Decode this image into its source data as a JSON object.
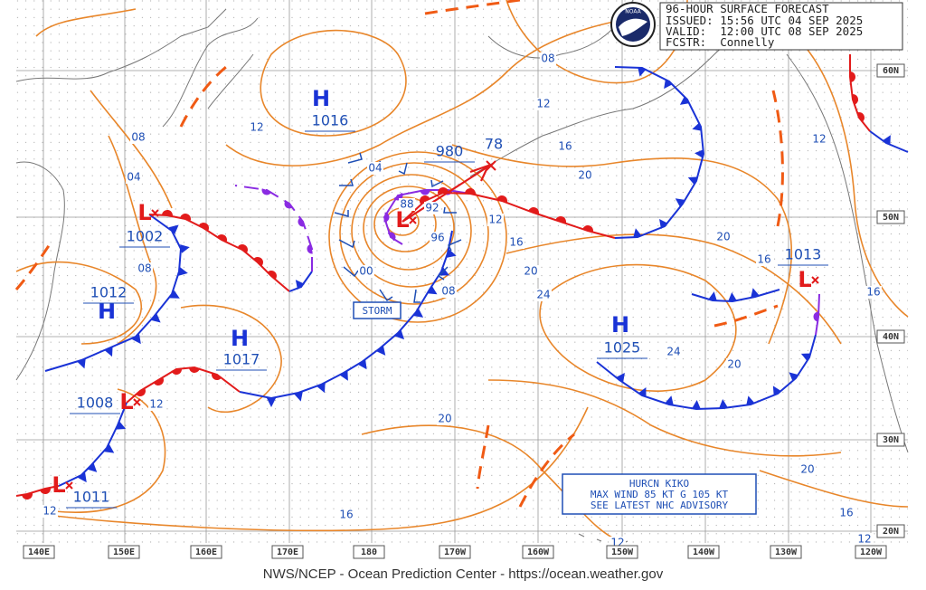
{
  "header": {
    "lines": [
      "96-HOUR SURFACE FORECAST",
      "ISSUED: 15:56 UTC 04 SEP 2025",
      "VALID:  12:00 UTC 08 SEP 2025",
      "FCSTR:  Connelly"
    ]
  },
  "logo": "NOAA",
  "centers": [
    {
      "symbol": "H",
      "pressure": "1016"
    },
    {
      "symbol": "L",
      "pressure": "980"
    },
    {
      "symbol": "L",
      "pressure": "1002"
    },
    {
      "symbol": "H",
      "pressure": "1012"
    },
    {
      "symbol": "H",
      "pressure": "1017"
    },
    {
      "symbol": "L",
      "pressure": "1008"
    },
    {
      "symbol": "L",
      "pressure": "1011"
    },
    {
      "symbol": "H",
      "pressure": "1025"
    },
    {
      "symbol": "L",
      "pressure": "1013"
    }
  ],
  "storm_track_label": "78",
  "storm_label": "STORM",
  "isobar_labels": [
    "08",
    "04",
    "12",
    "08",
    "12",
    "12",
    "04",
    "88",
    "92",
    "96",
    "00",
    "08",
    "12",
    "16",
    "20",
    "24",
    "16",
    "12",
    "08",
    "20",
    "20",
    "16",
    "12",
    "24",
    "20",
    "20",
    "16",
    "20",
    "16",
    "16",
    "12",
    "12"
  ],
  "latitude_labels": [
    "60N",
    "50N",
    "40N",
    "30N",
    "20N"
  ],
  "longitude_labels": [
    "140E",
    "150E",
    "160E",
    "170E",
    "180",
    "170W",
    "160W",
    "150W",
    "140W",
    "130W",
    "120W"
  ],
  "hurricane_box": {
    "lines": [
      "HURCN KIKO",
      "MAX WIND 85 KT G 105 KT",
      "SEE LATEST NHC ADVISORY"
    ]
  },
  "footer": "NWS/NCEP - Ocean Prediction Center - https://ocean.weather.gov"
}
